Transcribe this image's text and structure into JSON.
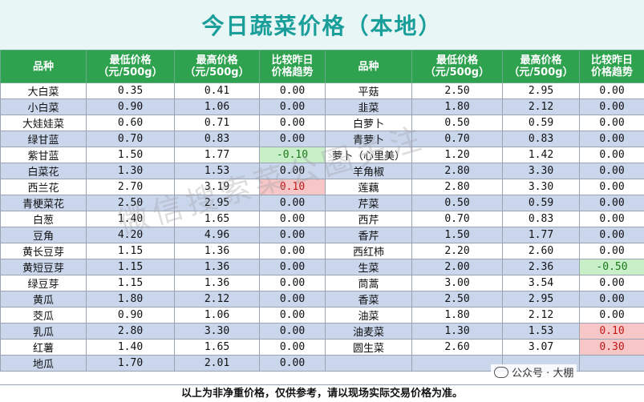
{
  "title": "今日蔬菜价格（本地）",
  "headers": {
    "left": [
      "品种",
      "最低价格\n（元/500g）",
      "最高价格\n（元/500g）",
      "比较昨日\n价格趋势"
    ],
    "right": [
      "品种",
      "最低价格\n（元/500g）",
      "最高价格\n（元/500g）",
      "比较昨日\n价格趋势"
    ]
  },
  "rows": [
    {
      "l": [
        "大白菜",
        "0.35",
        "0.41",
        "0.00"
      ],
      "r": [
        "平菇",
        "2.50",
        "2.95",
        "0.00"
      ]
    },
    {
      "l": [
        "小白菜",
        "0.90",
        "1.06",
        "0.00"
      ],
      "r": [
        "韭菜",
        "1.80",
        "2.12",
        "0.00"
      ]
    },
    {
      "l": [
        "大娃娃菜",
        "0.60",
        "0.71",
        "0.00"
      ],
      "r": [
        "白萝卜",
        "0.50",
        "0.59",
        "0.00"
      ]
    },
    {
      "l": [
        "绿甘蓝",
        "0.70",
        "0.83",
        "0.00"
      ],
      "r": [
        "青萝卜",
        "0.70",
        "0.83",
        "0.00"
      ]
    },
    {
      "l": [
        "紫甘蓝",
        "1.50",
        "1.77",
        "-0.10"
      ],
      "r": [
        "萝卜（心里美）",
        "1.20",
        "1.42",
        "0.00"
      ]
    },
    {
      "l": [
        "白菜花",
        "1.30",
        "1.53",
        "0.00"
      ],
      "r": [
        "羊角椒",
        "2.80",
        "3.30",
        "0.00"
      ]
    },
    {
      "l": [
        "西兰花",
        "2.70",
        "3.19",
        "0.10"
      ],
      "r": [
        "莲藕",
        "2.80",
        "3.30",
        "0.00"
      ]
    },
    {
      "l": [
        "青梗菜花",
        "2.50",
        "2.95",
        "0.00"
      ],
      "r": [
        "芹菜",
        "0.50",
        "0.59",
        "0.00"
      ]
    },
    {
      "l": [
        "白葱",
        "1.40",
        "1.65",
        "0.00"
      ],
      "r": [
        "西芹",
        "0.70",
        "0.83",
        "0.00"
      ]
    },
    {
      "l": [
        "豆角",
        "4.20",
        "4.96",
        "0.00"
      ],
      "r": [
        "香芹",
        "1.50",
        "1.77",
        "0.00"
      ]
    },
    {
      "l": [
        "黄长豆芽",
        "1.15",
        "1.36",
        "0.00"
      ],
      "r": [
        "西红柿",
        "2.20",
        "2.60",
        "0.00"
      ]
    },
    {
      "l": [
        "黄短豆芽",
        "1.15",
        "1.36",
        "0.00"
      ],
      "r": [
        "生菜",
        "2.00",
        "2.36",
        "-0.50"
      ]
    },
    {
      "l": [
        "绿豆芽",
        "1.15",
        "1.36",
        "0.00"
      ],
      "r": [
        "茼蒿",
        "3.00",
        "3.54",
        "0.00"
      ]
    },
    {
      "l": [
        "黄瓜",
        "1.80",
        "2.12",
        "0.00"
      ],
      "r": [
        "香菜",
        "2.50",
        "2.95",
        "0.00"
      ]
    },
    {
      "l": [
        "茭瓜",
        "0.90",
        "1.06",
        "0.00"
      ],
      "r": [
        "油菜",
        "1.80",
        "2.12",
        "0.00"
      ]
    },
    {
      "l": [
        "乳瓜",
        "2.80",
        "3.30",
        "0.00"
      ],
      "r": [
        "油麦菜",
        "1.30",
        "1.53",
        "0.10"
      ]
    },
    {
      "l": [
        "红薯",
        "1.40",
        "1.65",
        "0.00"
      ],
      "r": [
        "圆生菜",
        "2.60",
        "3.07",
        "0.30"
      ]
    },
    {
      "l": [
        "地瓜",
        "1.70",
        "2.01",
        "0.00"
      ],
      "r": [
        "",
        "",
        "",
        ""
      ]
    }
  ],
  "footer": "以上为非净重价格，仅供参考，请以现场实际交易价格为准。",
  "watermark": "微信搜索菜公圈关注",
  "badge": "公众号 · 大棚",
  "colors": {
    "header_bg": "#2ea24f",
    "title": "#1a9e9a",
    "alt_row": "#c9d6ec",
    "down": "#c8efc8",
    "up": "#f7c6c6"
  }
}
